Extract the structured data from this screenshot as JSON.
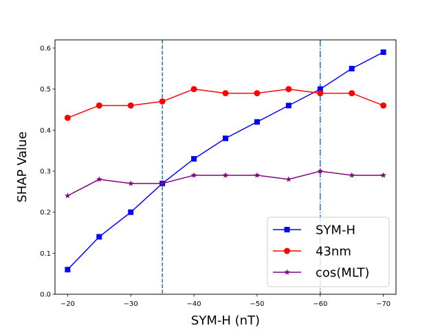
{
  "chart_data": {
    "type": "line",
    "title": "",
    "xlabel": "SYM-H (nT)",
    "ylabel": "SHAP Value",
    "x": [
      -20,
      -25,
      -30,
      -35,
      -40,
      -45,
      -50,
      -55,
      -60,
      -65,
      -70
    ],
    "xlim": [
      -18,
      -72
    ],
    "ylim": [
      0,
      0.62
    ],
    "xticks": [
      -20,
      -30,
      -40,
      -50,
      -60,
      -70
    ],
    "xtick_labels": [
      "−20",
      "−30",
      "−40",
      "−50",
      "−60",
      "−70"
    ],
    "yticks": [
      0,
      0.1,
      0.2,
      0.3,
      0.4,
      0.5,
      0.6
    ],
    "ytick_labels": [
      "0.0",
      "0.1",
      "0.2",
      "0.3",
      "0.4",
      "0.5",
      "0.6"
    ],
    "grid": false,
    "legend_position": "lower-right",
    "series": [
      {
        "name": "SYM-H",
        "color": "#0000ff",
        "marker": "square",
        "values": [
          0.06,
          0.14,
          0.2,
          0.27,
          0.33,
          0.38,
          0.42,
          0.46,
          0.5,
          0.55,
          0.59
        ]
      },
      {
        "name": "43nm",
        "color": "#ff0000",
        "marker": "circle",
        "values": [
          0.43,
          0.46,
          0.46,
          0.47,
          0.5,
          0.49,
          0.49,
          0.5,
          0.49,
          0.49,
          0.46
        ]
      },
      {
        "name": "cos(MLT)",
        "color": "#800080",
        "marker": "star",
        "values": [
          0.24,
          0.28,
          0.27,
          0.27,
          0.29,
          0.29,
          0.29,
          0.28,
          0.3,
          0.29,
          0.29
        ]
      }
    ],
    "vertical_lines": [
      {
        "x": -35,
        "style": "dashed",
        "color": "#1f77b4"
      },
      {
        "x": -60,
        "style": "dashdot",
        "color": "#1f77b4"
      }
    ]
  }
}
